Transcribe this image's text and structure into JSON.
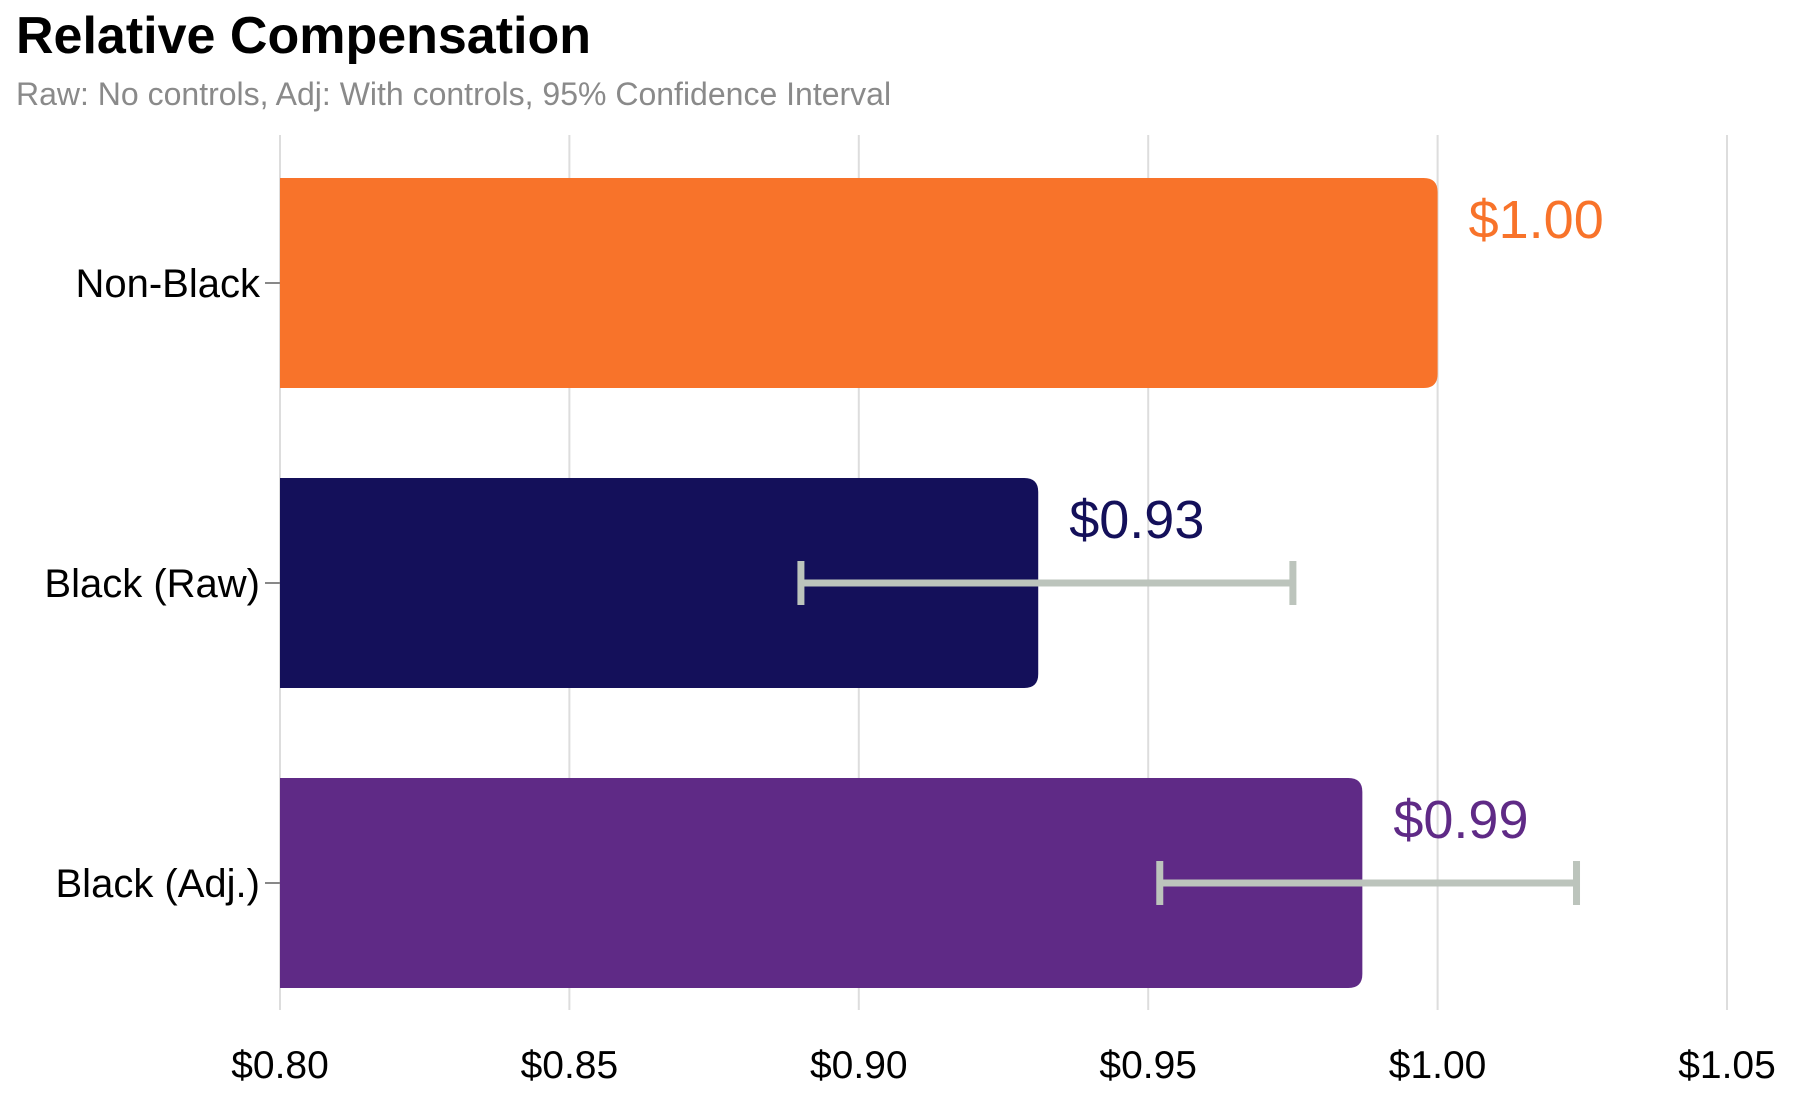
{
  "chart_data": {
    "type": "bar",
    "orientation": "horizontal",
    "title": "Relative Compensation",
    "subtitle": "Raw: No controls, Adj: With controls, 95% Confidence Interval",
    "xlabel": "",
    "ylabel": "",
    "xlim": [
      0.8,
      1.05
    ],
    "x_ticks": [
      0.8,
      0.85,
      0.9,
      0.95,
      1.0,
      1.05
    ],
    "x_tick_labels": [
      "$0.80",
      "$0.85",
      "$0.90",
      "$0.95",
      "$1.00",
      "$1.05"
    ],
    "grid": "vertical",
    "categories": [
      "Non-Black",
      "Black (Raw)",
      "Black (Adj.)"
    ],
    "values": [
      1.0,
      0.931,
      0.987
    ],
    "value_labels": [
      "$1.00",
      "$0.93",
      "$0.99"
    ],
    "colors": [
      "#f8732a",
      "#14105a",
      "#5f2a86"
    ],
    "error_bars": [
      null,
      [
        0.89,
        0.975
      ],
      [
        0.952,
        1.024
      ]
    ],
    "error_bar_color": "#bcc4bc",
    "grid_color": "#dddddd"
  }
}
